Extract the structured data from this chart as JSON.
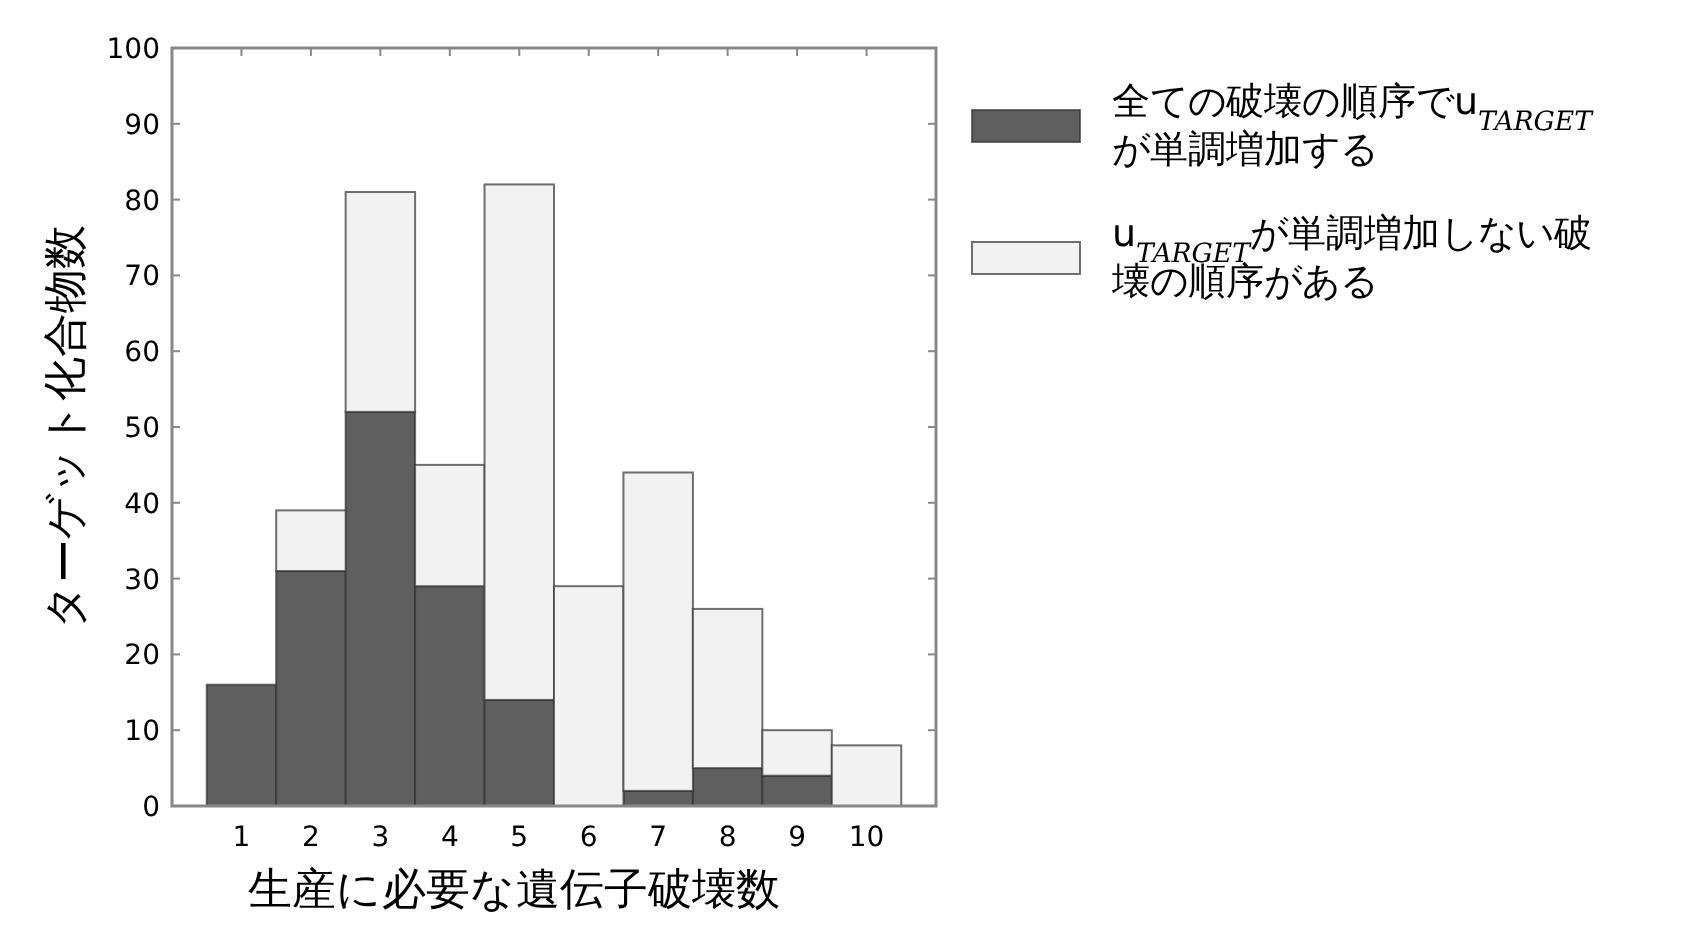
{
  "chart_data": {
    "type": "bar",
    "stacked": true,
    "xlabel": "生産に必要な遺伝子破壊数",
    "ylabel": "ターゲット化合物数",
    "categories": [
      "1",
      "2",
      "3",
      "4",
      "5",
      "6",
      "7",
      "8",
      "9",
      "10"
    ],
    "series": [
      {
        "name": "全ての破壊の順序でu$_{TARGET}$が単調増加する",
        "color": "#5f5f5f",
        "values": [
          16,
          31,
          52,
          29,
          14,
          0,
          2,
          5,
          4,
          0
        ]
      },
      {
        "name": "u$_{TARGET}$が単調増加しない破壊の順序がある",
        "color": "#f2f2f2",
        "values": [
          0,
          8,
          29,
          16,
          68,
          29,
          42,
          21,
          6,
          8
        ]
      }
    ],
    "ylim": [
      0,
      100
    ],
    "yticks": [
      0,
      10,
      20,
      30,
      40,
      50,
      60,
      70,
      80,
      90,
      100
    ],
    "grid": false,
    "legend": "top right"
  }
}
